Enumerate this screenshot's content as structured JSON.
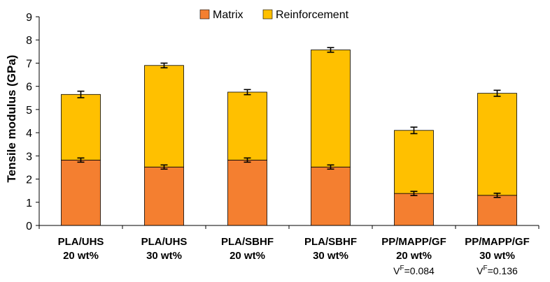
{
  "chart_data": {
    "type": "bar",
    "stacked": true,
    "title": "",
    "xlabel": "",
    "ylabel": "Tensile modulus (GPa)",
    "ylim": [
      0,
      9
    ],
    "yticks": [
      0,
      1,
      2,
      3,
      4,
      5,
      6,
      7,
      8,
      9
    ],
    "grid": false,
    "legend_position": "top-center",
    "categories": [
      {
        "line1": "PLA/UHS",
        "line2": "20 wt%",
        "note": null
      },
      {
        "line1": "PLA/UHS",
        "line2": "30 wt%",
        "note": null
      },
      {
        "line1": "PLA/SBHF",
        "line2": "20 wt%",
        "note": null
      },
      {
        "line1": "PLA/SBHF",
        "line2": "30 wt%",
        "note": null
      },
      {
        "line1": "PP/MAPP/GF",
        "line2": "20 wt%",
        "note": {
          "prefix": "V",
          "sup": "F",
          "suffix": "=0.084"
        }
      },
      {
        "line1": "PP/MAPP/GF",
        "line2": "30 wt%",
        "note": {
          "prefix": "V",
          "sup": "F",
          "suffix": "=0.136"
        }
      }
    ],
    "series": [
      {
        "name": "Matrix",
        "color": "#F47F30",
        "values": [
          2.82,
          2.52,
          2.82,
          2.52,
          1.38,
          1.3
        ],
        "errors": [
          0.09,
          0.09,
          0.09,
          0.09,
          0.09,
          0.09
        ]
      },
      {
        "name": "Reinforcement",
        "color": "#FFC000",
        "values": [
          2.83,
          4.38,
          2.93,
          5.05,
          2.72,
          4.4
        ],
        "totals": [
          5.65,
          6.9,
          5.75,
          7.57,
          4.1,
          5.7
        ],
        "errors": [
          0.14,
          0.1,
          0.11,
          0.1,
          0.14,
          0.13
        ]
      }
    ]
  }
}
